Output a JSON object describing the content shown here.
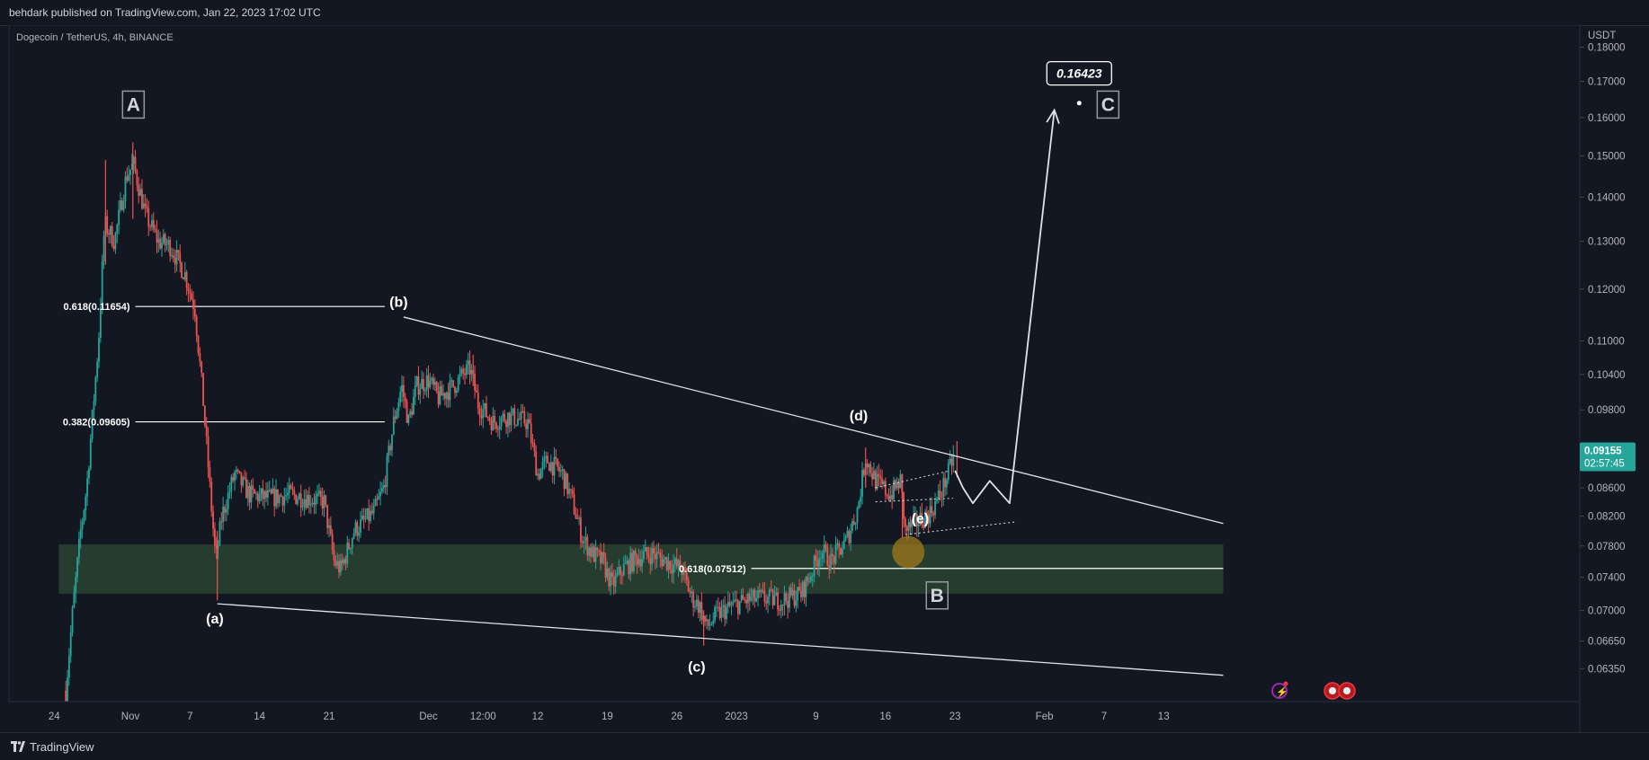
{
  "header": {
    "publisher_text": "behdark published on TradingView.com, Jan 22, 2023 17:02 UTC"
  },
  "footer": {
    "brand": "TradingView"
  },
  "chart_data": {
    "type": "candlestick",
    "symbol_title": "Dogecoin / TetherUS, 4h, BINANCE",
    "currency_label": "USDT",
    "ylim": [
      0.061,
      0.184
    ],
    "log_scale": true,
    "price_ticks": [
      "0.18000",
      "0.17000",
      "0.16000",
      "0.15000",
      "0.14000",
      "0.13000",
      "0.12000",
      "0.11000",
      "0.10400",
      "0.09800",
      "0.09155",
      "0.08600",
      "0.08200",
      "0.07800",
      "0.07400",
      "0.07000",
      "0.06650",
      "0.06350"
    ],
    "time_ticks": [
      {
        "label": "24",
        "t": -7.67
      },
      {
        "label": "Nov",
        "t": 0
      },
      {
        "label": "7",
        "t": 6
      },
      {
        "label": "14",
        "t": 13
      },
      {
        "label": "21",
        "t": 20
      },
      {
        "label": "Dec",
        "t": 30
      },
      {
        "label": "12:00",
        "t": 35.5
      },
      {
        "label": "12",
        "t": 41
      },
      {
        "label": "19",
        "t": 48
      },
      {
        "label": "26",
        "t": 55
      },
      {
        "label": "2023",
        "t": 61
      },
      {
        "label": "9",
        "t": 69
      },
      {
        "label": "16",
        "t": 76
      },
      {
        "label": "23",
        "t": 83
      },
      {
        "label": "Feb",
        "t": 92
      },
      {
        "label": "7",
        "t": 98
      },
      {
        "label": "13",
        "t": 104
      }
    ],
    "last_price": {
      "value": "0.09155",
      "countdown": "02:57:45"
    },
    "path_nodes": [
      {
        "t": -6.5,
        "p": 0.0612
      },
      {
        "t": -5.8,
        "p": 0.07
      },
      {
        "t": -5.0,
        "p": 0.08
      },
      {
        "t": -4.4,
        "p": 0.086
      },
      {
        "t": -3.2,
        "p": 0.11
      },
      {
        "t": -2.6,
        "p": 0.134
      },
      {
        "t": -1.6,
        "p": 0.13
      },
      {
        "t": -0.4,
        "p": 0.145
      },
      {
        "t": 0.3,
        "p": 0.148
      },
      {
        "t": 1.5,
        "p": 0.136
      },
      {
        "t": 2.8,
        "p": 0.13
      },
      {
        "t": 4.0,
        "p": 0.129
      },
      {
        "t": 5.5,
        "p": 0.123
      },
      {
        "t": 6.5,
        "p": 0.116
      },
      {
        "t": 7.3,
        "p": 0.1
      },
      {
        "t": 8.0,
        "p": 0.086
      },
      {
        "t": 8.6,
        "p": 0.076
      },
      {
        "t": 9.2,
        "p": 0.082
      },
      {
        "t": 10.5,
        "p": 0.088
      },
      {
        "t": 12.0,
        "p": 0.085
      },
      {
        "t": 14.0,
        "p": 0.0845
      },
      {
        "t": 16.0,
        "p": 0.085
      },
      {
        "t": 18.0,
        "p": 0.0845
      },
      {
        "t": 19.5,
        "p": 0.084
      },
      {
        "t": 20.5,
        "p": 0.076
      },
      {
        "t": 21.2,
        "p": 0.075
      },
      {
        "t": 22.5,
        "p": 0.08
      },
      {
        "t": 24.5,
        "p": 0.0825
      },
      {
        "t": 25.5,
        "p": 0.086
      },
      {
        "t": 26.5,
        "p": 0.096
      },
      {
        "t": 27.3,
        "p": 0.102
      },
      {
        "t": 28.0,
        "p": 0.096
      },
      {
        "t": 28.8,
        "p": 0.102
      },
      {
        "t": 30.0,
        "p": 0.103
      },
      {
        "t": 31.0,
        "p": 0.1
      },
      {
        "t": 32.5,
        "p": 0.102
      },
      {
        "t": 33.5,
        "p": 0.104
      },
      {
        "t": 34.2,
        "p": 0.105
      },
      {
        "t": 35.0,
        "p": 0.099
      },
      {
        "t": 36.5,
        "p": 0.096
      },
      {
        "t": 38.0,
        "p": 0.097
      },
      {
        "t": 40.0,
        "p": 0.096
      },
      {
        "t": 41.0,
        "p": 0.088
      },
      {
        "t": 42.0,
        "p": 0.09
      },
      {
        "t": 43.5,
        "p": 0.088
      },
      {
        "t": 44.5,
        "p": 0.084
      },
      {
        "t": 45.5,
        "p": 0.079
      },
      {
        "t": 46.5,
        "p": 0.077
      },
      {
        "t": 47.5,
        "p": 0.076
      },
      {
        "t": 48.5,
        "p": 0.073
      },
      {
        "t": 49.5,
        "p": 0.075
      },
      {
        "t": 51.0,
        "p": 0.0765
      },
      {
        "t": 52.5,
        "p": 0.077
      },
      {
        "t": 54.0,
        "p": 0.076
      },
      {
        "t": 55.5,
        "p": 0.075
      },
      {
        "t": 56.5,
        "p": 0.0715
      },
      {
        "t": 57.3,
        "p": 0.0705
      },
      {
        "t": 58.0,
        "p": 0.068
      },
      {
        "t": 59.0,
        "p": 0.0695
      },
      {
        "t": 60.5,
        "p": 0.0705
      },
      {
        "t": 62.0,
        "p": 0.0712
      },
      {
        "t": 63.5,
        "p": 0.0715
      },
      {
        "t": 65.5,
        "p": 0.0712
      },
      {
        "t": 67.5,
        "p": 0.072
      },
      {
        "t": 68.5,
        "p": 0.0745
      },
      {
        "t": 69.5,
        "p": 0.0775
      },
      {
        "t": 70.5,
        "p": 0.076
      },
      {
        "t": 72.0,
        "p": 0.0785
      },
      {
        "t": 73.2,
        "p": 0.083
      },
      {
        "t": 74.0,
        "p": 0.0905
      },
      {
        "t": 75.0,
        "p": 0.087
      },
      {
        "t": 76.5,
        "p": 0.085
      },
      {
        "t": 77.5,
        "p": 0.087
      },
      {
        "t": 78.0,
        "p": 0.08
      },
      {
        "t": 79.0,
        "p": 0.081
      },
      {
        "t": 80.5,
        "p": 0.0825
      },
      {
        "t": 81.5,
        "p": 0.085
      },
      {
        "t": 82.3,
        "p": 0.088
      },
      {
        "t": 83.0,
        "p": 0.0915
      }
    ],
    "spike_candles": [
      {
        "t": -2.5,
        "high": 0.149,
        "low": 0.125
      },
      {
        "t": 0.25,
        "high": 0.1535,
        "low": 0.135
      },
      {
        "t": 8.75,
        "high": 0.08,
        "low": 0.0712
      },
      {
        "t": 34.5,
        "high": 0.1075,
        "low": 0.102
      },
      {
        "t": 57.7,
        "high": 0.07,
        "low": 0.066
      },
      {
        "t": 74.0,
        "high": 0.092,
        "low": 0.086
      },
      {
        "t": 77.7,
        "high": 0.088,
        "low": 0.079
      },
      {
        "t": 83.2,
        "high": 0.093,
        "low": 0.0875
      }
    ],
    "fib_levels": [
      {
        "label": "0.618(0.11654)",
        "value": 0.11654,
        "t_start": 0.5,
        "t_end": 25.6
      },
      {
        "label": "0.382(0.09605)",
        "value": 0.09605,
        "t_start": 0.5,
        "t_end": 25.6
      },
      {
        "label": "0.618(0.07512)",
        "value": 0.07512,
        "t_start": 62.5,
        "t_end": 110
      }
    ],
    "support_zone": {
      "top": 0.0782,
      "bottom": 0.072,
      "t_start": -7.2,
      "t_end": 110
    },
    "trendlines": [
      {
        "name": "upper",
        "t1": 27.5,
        "p1": 0.1145,
        "t2": 110,
        "p2": 0.081
      },
      {
        "name": "lower",
        "t1": 8.75,
        "p1": 0.0708,
        "t2": 110,
        "p2": 0.0628
      }
    ],
    "dotted_lines": [
      {
        "t1": 75.0,
        "p1": 0.086,
        "t2": 82.5,
        "p2": 0.0885
      },
      {
        "t1": 75.0,
        "p1": 0.084,
        "t2": 82.8,
        "p2": 0.0845
      },
      {
        "t1": 78.0,
        "p1": 0.0795,
        "t2": 89.0,
        "p2": 0.0812
      }
    ],
    "projection_path": [
      {
        "t": 83.0,
        "p": 0.0885
      },
      {
        "t": 83.8,
        "p": 0.086
      },
      {
        "t": 84.8,
        "p": 0.0838
      },
      {
        "t": 86.5,
        "p": 0.087
      },
      {
        "t": 88.5,
        "p": 0.0838
      },
      {
        "t": 93.0,
        "p": 0.162
      }
    ],
    "wave_labels": [
      {
        "text": "(a)",
        "t": 8.5,
        "p": 0.0685
      },
      {
        "text": "(b)",
        "t": 27.0,
        "p": 0.1165
      },
      {
        "text": "(c)",
        "t": 57.0,
        "p": 0.0632
      },
      {
        "text": "(d)",
        "t": 73.3,
        "p": 0.0963
      },
      {
        "text": "(e)",
        "t": 79.5,
        "p": 0.081
      }
    ],
    "box_labels": [
      {
        "text": "A",
        "t": 0.3,
        "p": 0.1635
      },
      {
        "text": "B",
        "t": 81.2,
        "p": 0.0718
      },
      {
        "text": "C",
        "t": 98.4,
        "p": 0.1635
      }
    ],
    "target_callout": {
      "text": "0.16423",
      "t": 95.5,
      "p": 0.1723,
      "dot_t": 95.5,
      "dot_p": 0.1639
    },
    "marker_circle": {
      "t": 78.3,
      "p": 0.0772
    },
    "colors": {
      "up": "#26a69a",
      "down": "#ef5350",
      "zone": "#2d4a34",
      "accent_price": "#26a69a",
      "background": "#131722"
    },
    "event_icons": [
      "lightning-icon",
      "us-flag-icon",
      "us-flag-icon"
    ]
  }
}
